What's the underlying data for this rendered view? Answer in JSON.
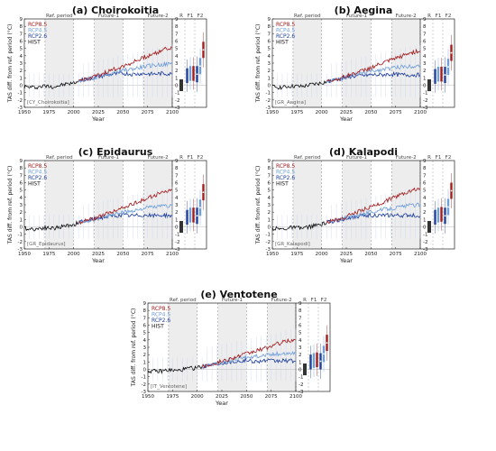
{
  "chart_data": [
    {
      "type": "line",
      "title": "(a) Choirokoitia",
      "site_label": "[CY_Choirokoitia]",
      "xlabel": "Year",
      "ylabel": "TAS diff. from ref. period (°C)",
      "xlim": [
        1950,
        2100
      ],
      "ylim": [
        -3,
        9
      ],
      "xticks": [
        1950,
        1975,
        2000,
        2025,
        2050,
        2075,
        2100
      ],
      "yticks": [
        -3,
        -2,
        -1,
        0,
        1,
        2,
        3,
        4,
        5,
        6,
        7,
        8,
        9
      ],
      "periods": [
        {
          "label": "Ref. period",
          "start": 1971,
          "end": 2000
        },
        {
          "label": "Future-1",
          "start": 2021,
          "end": 2050
        },
        {
          "label": "Future-2",
          "start": 2071,
          "end": 2100
        }
      ],
      "box_labels": [
        "R",
        "F1",
        "F2"
      ],
      "legend": [
        "RCP8.5",
        "RCP4.5",
        "RCP2.6",
        "HIST"
      ],
      "legend_position": "top-left",
      "series": [
        {
          "name": "HIST",
          "color": "#111111",
          "x": [
            1950,
            1960,
            1970,
            1980,
            1990,
            2000,
            2005
          ],
          "y": [
            -0.2,
            -0.3,
            -0.1,
            -0.2,
            0.1,
            0.3,
            0.6
          ]
        },
        {
          "name": "RCP2.6",
          "color": "#1f3f9a",
          "x": [
            2005,
            2020,
            2030,
            2040,
            2050,
            2060,
            2070,
            2080,
            2090,
            2100
          ],
          "y": [
            0.6,
            1.0,
            1.3,
            1.5,
            1.6,
            1.5,
            1.6,
            1.5,
            1.6,
            1.5
          ]
        },
        {
          "name": "RCP4.5",
          "color": "#6f9fd8",
          "x": [
            2005,
            2020,
            2030,
            2040,
            2050,
            2060,
            2070,
            2080,
            2090,
            2100
          ],
          "y": [
            0.6,
            1.0,
            1.4,
            1.7,
            2.0,
            2.2,
            2.5,
            2.7,
            2.8,
            2.9
          ]
        },
        {
          "name": "RCP8.5",
          "color": "#a31d1d",
          "x": [
            2005,
            2020,
            2030,
            2040,
            2050,
            2060,
            2070,
            2080,
            2090,
            2100
          ],
          "y": [
            0.6,
            1.1,
            1.6,
            2.1,
            2.6,
            3.1,
            3.7,
            4.2,
            4.8,
            5.1
          ]
        }
      ],
      "box_medians": {
        "R": [
          0.0
        ],
        "F1": [
          1.3,
          1.6,
          1.6
        ],
        "F2": [
          1.5,
          2.6,
          4.8
        ]
      }
    },
    {
      "type": "line",
      "title": "(b) Aegina",
      "site_label": "[GR_Aegina]",
      "xlabel": "Year",
      "ylabel": "TAS diff. from ref. period (°C)",
      "xlim": [
        1950,
        2100
      ],
      "ylim": [
        -3,
        9
      ],
      "xticks": [
        1950,
        1975,
        2000,
        2025,
        2050,
        2075,
        2100
      ],
      "yticks": [
        -3,
        -2,
        -1,
        0,
        1,
        2,
        3,
        4,
        5,
        6,
        7,
        8,
        9
      ],
      "periods": [
        {
          "label": "Ref. period",
          "start": 1971,
          "end": 2000
        },
        {
          "label": "Future-1",
          "start": 2021,
          "end": 2050
        },
        {
          "label": "Future-2",
          "start": 2071,
          "end": 2100
        }
      ],
      "box_labels": [
        "R",
        "F1",
        "F2"
      ],
      "legend": [
        "RCP8.5",
        "RCP4.5",
        "RCP2.6",
        "HIST"
      ],
      "legend_position": "top-left",
      "series": [
        {
          "name": "HIST",
          "color": "#111111",
          "x": [
            1950,
            1960,
            1970,
            1980,
            1990,
            2000,
            2005
          ],
          "y": [
            -0.2,
            -0.3,
            -0.1,
            -0.2,
            0.1,
            0.3,
            0.5
          ]
        },
        {
          "name": "RCP2.6",
          "color": "#1f3f9a",
          "x": [
            2005,
            2020,
            2030,
            2040,
            2050,
            2060,
            2070,
            2080,
            2090,
            2100
          ],
          "y": [
            0.5,
            0.9,
            1.2,
            1.3,
            1.4,
            1.4,
            1.5,
            1.4,
            1.4,
            1.4
          ]
        },
        {
          "name": "RCP4.5",
          "color": "#6f9fd8",
          "x": [
            2005,
            2020,
            2030,
            2040,
            2050,
            2060,
            2070,
            2080,
            2090,
            2100
          ],
          "y": [
            0.5,
            0.9,
            1.3,
            1.6,
            1.9,
            2.1,
            2.3,
            2.5,
            2.6,
            2.7
          ]
        },
        {
          "name": "RCP8.5",
          "color": "#a31d1d",
          "x": [
            2005,
            2020,
            2030,
            2040,
            2050,
            2060,
            2070,
            2080,
            2090,
            2100
          ],
          "y": [
            0.5,
            1.0,
            1.5,
            1.9,
            2.4,
            2.9,
            3.4,
            3.9,
            4.4,
            4.7
          ]
        }
      ],
      "box_medians": {
        "R": [
          0.0
        ],
        "F1": [
          1.2,
          1.5,
          1.5
        ],
        "F2": [
          1.4,
          2.5,
          4.4
        ]
      }
    },
    {
      "type": "line",
      "title": "(c) Epidaurus",
      "site_label": "[GR_Epidaurus]",
      "xlabel": "Year",
      "ylabel": "TAS diff. from ref. period (°C)",
      "xlim": [
        1950,
        2100
      ],
      "ylim": [
        -3,
        9
      ],
      "xticks": [
        1950,
        1975,
        2000,
        2025,
        2050,
        2075,
        2100
      ],
      "yticks": [
        -3,
        -2,
        -1,
        0,
        1,
        2,
        3,
        4,
        5,
        6,
        7,
        8,
        9
      ],
      "periods": [
        {
          "label": "Ref. period",
          "start": 1971,
          "end": 2000
        },
        {
          "label": "Future-1",
          "start": 2021,
          "end": 2050
        },
        {
          "label": "Future-2",
          "start": 2071,
          "end": 2100
        }
      ],
      "box_labels": [
        "R",
        "F1",
        "F2"
      ],
      "legend": [
        "RCP8.5",
        "RCP4.5",
        "RCP2.6",
        "HIST"
      ],
      "legend_position": "top-left",
      "series": [
        {
          "name": "HIST",
          "color": "#111111",
          "x": [
            1950,
            1960,
            1970,
            1980,
            1990,
            2000,
            2005
          ],
          "y": [
            -0.2,
            -0.3,
            -0.1,
            -0.2,
            0.1,
            0.3,
            0.6
          ]
        },
        {
          "name": "RCP2.6",
          "color": "#1f3f9a",
          "x": [
            2005,
            2020,
            2030,
            2040,
            2050,
            2060,
            2070,
            2080,
            2090,
            2100
          ],
          "y": [
            0.6,
            1.0,
            1.3,
            1.5,
            1.6,
            1.5,
            1.6,
            1.5,
            1.6,
            1.5
          ]
        },
        {
          "name": "RCP4.5",
          "color": "#6f9fd8",
          "x": [
            2005,
            2020,
            2030,
            2040,
            2050,
            2060,
            2070,
            2080,
            2090,
            2100
          ],
          "y": [
            0.6,
            1.0,
            1.4,
            1.7,
            2.0,
            2.2,
            2.5,
            2.7,
            2.8,
            2.9
          ]
        },
        {
          "name": "RCP8.5",
          "color": "#a31d1d",
          "x": [
            2005,
            2020,
            2030,
            2040,
            2050,
            2060,
            2070,
            2080,
            2090,
            2100
          ],
          "y": [
            0.6,
            1.1,
            1.6,
            2.1,
            2.6,
            3.1,
            3.6,
            4.2,
            4.7,
            5.0
          ]
        }
      ],
      "box_medians": {
        "R": [
          0.0
        ],
        "F1": [
          1.3,
          1.6,
          1.6
        ],
        "F2": [
          1.5,
          2.6,
          4.7
        ]
      }
    },
    {
      "type": "line",
      "title": "(d) Kalapodi",
      "site_label": "[GR_Kalapodi]",
      "xlabel": "Year",
      "ylabel": "TAS diff. from ref. period (°C)",
      "xlim": [
        1950,
        2100
      ],
      "ylim": [
        -3,
        9
      ],
      "xticks": [
        1950,
        1975,
        2000,
        2025,
        2050,
        2075,
        2100
      ],
      "yticks": [
        -3,
        -2,
        -1,
        0,
        1,
        2,
        3,
        4,
        5,
        6,
        7,
        8,
        9
      ],
      "periods": [
        {
          "label": "Ref. period",
          "start": 1971,
          "end": 2000
        },
        {
          "label": "Future-1",
          "start": 2021,
          "end": 2050
        },
        {
          "label": "Future-2",
          "start": 2071,
          "end": 2100
        }
      ],
      "box_labels": [
        "R",
        "F1",
        "F2"
      ],
      "legend": [
        "RCP8.5",
        "RCP4.5",
        "RCP2.6",
        "HIST"
      ],
      "legend_position": "top-left",
      "series": [
        {
          "name": "HIST",
          "color": "#111111",
          "x": [
            1950,
            1960,
            1970,
            1980,
            1990,
            2000,
            2005
          ],
          "y": [
            -0.2,
            -0.3,
            -0.1,
            -0.2,
            0.1,
            0.3,
            0.6
          ]
        },
        {
          "name": "RCP2.6",
          "color": "#1f3f9a",
          "x": [
            2005,
            2020,
            2030,
            2040,
            2050,
            2060,
            2070,
            2080,
            2090,
            2100
          ],
          "y": [
            0.6,
            1.0,
            1.3,
            1.5,
            1.6,
            1.5,
            1.6,
            1.5,
            1.6,
            1.5
          ]
        },
        {
          "name": "RCP4.5",
          "color": "#6f9fd8",
          "x": [
            2005,
            2020,
            2030,
            2040,
            2050,
            2060,
            2070,
            2080,
            2090,
            2100
          ],
          "y": [
            0.6,
            1.0,
            1.4,
            1.7,
            2.0,
            2.3,
            2.5,
            2.7,
            2.9,
            3.0
          ]
        },
        {
          "name": "RCP8.5",
          "color": "#a31d1d",
          "x": [
            2005,
            2020,
            2030,
            2040,
            2050,
            2060,
            2070,
            2080,
            2090,
            2100
          ],
          "y": [
            0.6,
            1.1,
            1.7,
            2.2,
            2.7,
            3.2,
            3.8,
            4.4,
            4.9,
            5.3
          ]
        }
      ],
      "box_medians": {
        "R": [
          0.0
        ],
        "F1": [
          1.3,
          1.6,
          1.7
        ],
        "F2": [
          1.5,
          2.7,
          4.9
        ]
      }
    },
    {
      "type": "line",
      "title": "(e) Ventotene",
      "site_label": "[IT_Ventotene]",
      "xlabel": "Year",
      "ylabel": "TAS diff. from ref. period (°C)",
      "xlim": [
        1950,
        2100
      ],
      "ylim": [
        -3,
        9
      ],
      "xticks": [
        1950,
        1975,
        2000,
        2025,
        2050,
        2075,
        2100
      ],
      "yticks": [
        -3,
        -2,
        -1,
        0,
        1,
        2,
        3,
        4,
        5,
        6,
        7,
        8,
        9
      ],
      "periods": [
        {
          "label": "Ref. period",
          "start": 1971,
          "end": 2000
        },
        {
          "label": "Future-1",
          "start": 2021,
          "end": 2050
        },
        {
          "label": "Future-2",
          "start": 2071,
          "end": 2100
        }
      ],
      "box_labels": [
        "R",
        "F1",
        "F2"
      ],
      "legend": [
        "RCP8.5",
        "RCP4.5",
        "RCP2.6",
        "HIST"
      ],
      "legend_position": "top-left",
      "series": [
        {
          "name": "HIST",
          "color": "#111111",
          "x": [
            1950,
            1960,
            1970,
            1980,
            1990,
            2000,
            2005
          ],
          "y": [
            -0.2,
            -0.3,
            -0.1,
            -0.2,
            0.1,
            0.2,
            0.4
          ]
        },
        {
          "name": "RCP2.6",
          "color": "#1f3f9a",
          "x": [
            2005,
            2020,
            2030,
            2040,
            2050,
            2060,
            2070,
            2080,
            2090,
            2100
          ],
          "y": [
            0.4,
            0.8,
            1.0,
            1.1,
            1.2,
            1.1,
            1.2,
            1.1,
            1.2,
            1.1
          ]
        },
        {
          "name": "RCP4.5",
          "color": "#6f9fd8",
          "x": [
            2005,
            2020,
            2030,
            2040,
            2050,
            2060,
            2070,
            2080,
            2090,
            2100
          ],
          "y": [
            0.4,
            0.8,
            1.1,
            1.4,
            1.6,
            1.8,
            2.0,
            2.1,
            2.2,
            2.3
          ]
        },
        {
          "name": "RCP8.5",
          "color": "#a31d1d",
          "x": [
            2005,
            2020,
            2030,
            2040,
            2050,
            2060,
            2070,
            2080,
            2090,
            2100
          ],
          "y": [
            0.4,
            0.9,
            1.3,
            1.7,
            2.1,
            2.5,
            2.9,
            3.4,
            3.8,
            4.0
          ]
        }
      ],
      "box_medians": {
        "R": [
          0.0
        ],
        "F1": [
          1.0,
          1.2,
          1.3
        ],
        "F2": [
          1.1,
          2.1,
          3.6
        ]
      }
    }
  ]
}
